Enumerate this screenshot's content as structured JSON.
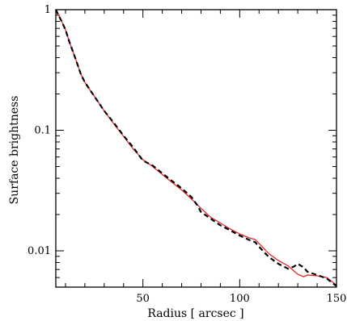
{
  "chart_data": {
    "type": "line",
    "title": "",
    "xlabel": "Radius [ arcsec ]",
    "ylabel": "Surface brightness",
    "xlim": [
      5,
      150
    ],
    "ylim": [
      0.005,
      1
    ],
    "yscale": "log",
    "grid": false,
    "x_tick_labels": [
      "50",
      "100",
      "150"
    ],
    "x_tick_values": [
      50,
      100,
      150
    ],
    "y_tick_labels": [
      "1",
      "0.1",
      "0.01"
    ],
    "y_tick_values": [
      1,
      0.1,
      0.01
    ],
    "series": [
      {
        "color": "#000000",
        "style": "dashed",
        "x": [
          5,
          8,
          10,
          12,
          15,
          18,
          20,
          25,
          30,
          35,
          40,
          45,
          50,
          55,
          60,
          65,
          70,
          75,
          78,
          80,
          85,
          90,
          95,
          100,
          105,
          108,
          110,
          115,
          120,
          125,
          128,
          130,
          133,
          135,
          140,
          145,
          150
        ],
        "y": [
          1.0,
          0.8,
          0.68,
          0.54,
          0.4,
          0.29,
          0.25,
          0.19,
          0.145,
          0.115,
          0.09,
          0.072,
          0.056,
          0.051,
          0.044,
          0.038,
          0.033,
          0.028,
          0.024,
          0.021,
          0.0185,
          0.0163,
          0.0148,
          0.0134,
          0.0123,
          0.0118,
          0.0108,
          0.0089,
          0.0078,
          0.0071,
          0.0074,
          0.0078,
          0.0073,
          0.0067,
          0.0063,
          0.0059,
          0.0051
        ]
      },
      {
        "color": "#e8262b",
        "style": "solid",
        "x": [
          5,
          8,
          10,
          12,
          15,
          18,
          20,
          25,
          30,
          35,
          40,
          45,
          50,
          55,
          60,
          65,
          70,
          75,
          80,
          85,
          90,
          95,
          100,
          105,
          108,
          110,
          115,
          120,
          125,
          128,
          130,
          133,
          135,
          140,
          145,
          150
        ],
        "y": [
          1.0,
          0.8,
          0.68,
          0.54,
          0.4,
          0.29,
          0.25,
          0.19,
          0.145,
          0.113,
          0.089,
          0.07,
          0.057,
          0.05,
          0.043,
          0.037,
          0.032,
          0.027,
          0.0225,
          0.019,
          0.017,
          0.0152,
          0.0138,
          0.0128,
          0.0124,
          0.0115,
          0.0095,
          0.0083,
          0.0075,
          0.0068,
          0.0064,
          0.0061,
          0.0063,
          0.0062,
          0.006,
          0.0052
        ]
      }
    ]
  }
}
